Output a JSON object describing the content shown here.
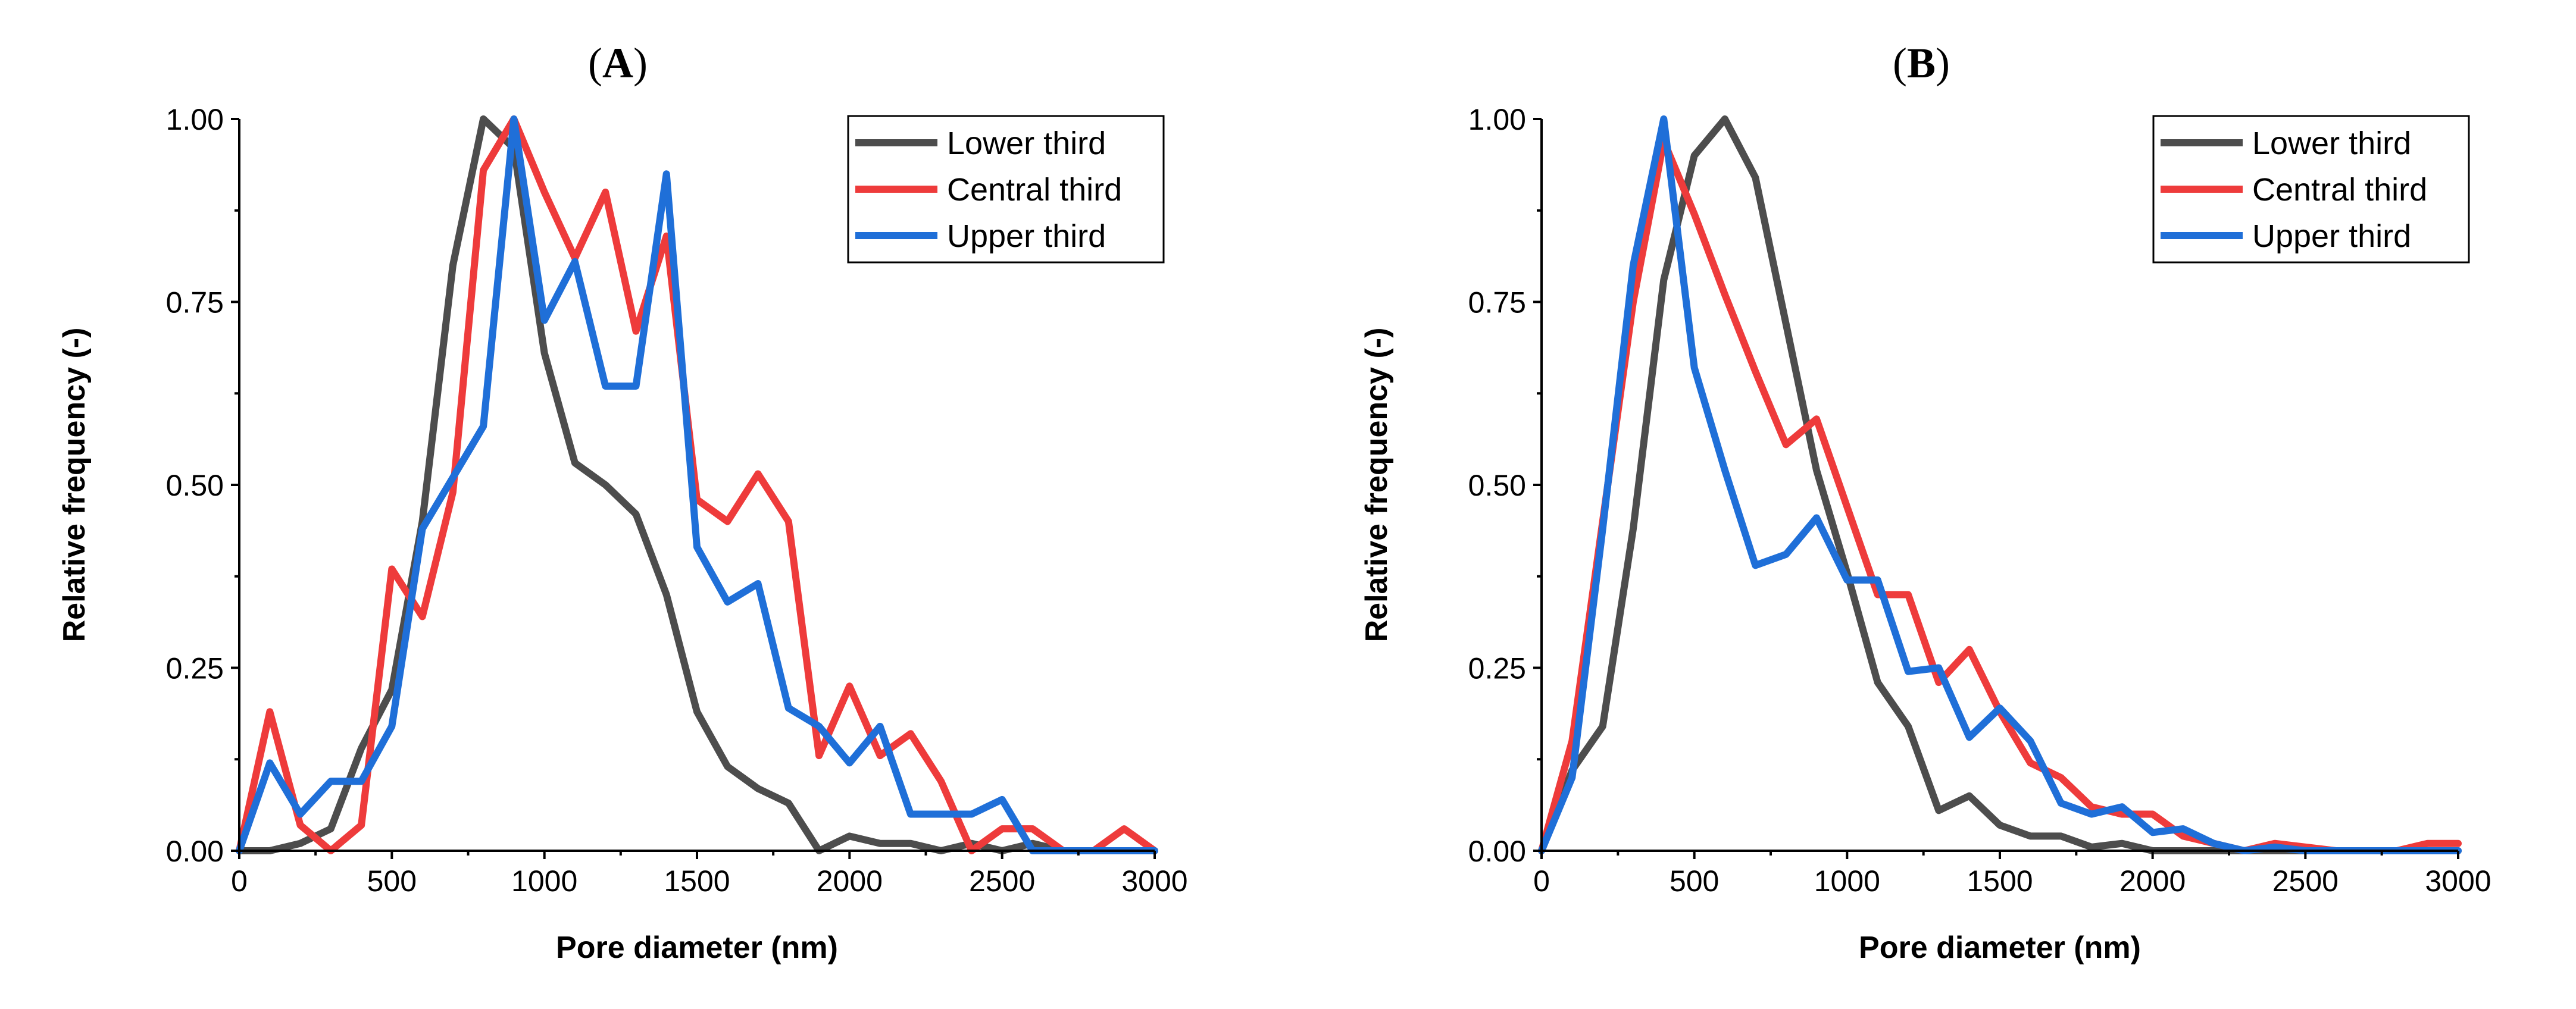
{
  "chart_data": [
    {
      "type": "line",
      "panel_label": {
        "open": "(",
        "letter": "A",
        "close": ")"
      },
      "xlabel": "Pore diameter (nm)",
      "ylabel": "Relative frequency (-)",
      "xlim": [
        0,
        3000
      ],
      "ylim": [
        0,
        1
      ],
      "xticks": [
        0,
        500,
        1000,
        1500,
        2000,
        2500,
        3000
      ],
      "xtick_labels": [
        "0",
        "500",
        "1000",
        "1500",
        "2000",
        "2500",
        "3000"
      ],
      "yticks": [
        0,
        0.25,
        0.5,
        0.75,
        1.0
      ],
      "ytick_labels": [
        "0.00",
        "0.25",
        "0.50",
        "0.75",
        "1.00"
      ],
      "legend_position": "top-right",
      "x": [
        0,
        100,
        200,
        300,
        400,
        500,
        600,
        700,
        800,
        900,
        1000,
        1100,
        1200,
        1300,
        1400,
        1500,
        1600,
        1700,
        1800,
        1900,
        2000,
        2100,
        2200,
        2300,
        2400,
        2500,
        2600,
        2700,
        2800,
        2900,
        3000
      ],
      "series": [
        {
          "name": "Lower third",
          "color": "#4d4d4d",
          "values": [
            0,
            0,
            0.01,
            0.03,
            0.14,
            0.22,
            0.45,
            0.8,
            1.0,
            0.96,
            0.68,
            0.53,
            0.5,
            0.46,
            0.35,
            0.19,
            0.115,
            0.085,
            0.065,
            0,
            0.02,
            0.01,
            0.01,
            0,
            0.01,
            0,
            0.01,
            0,
            0,
            0,
            0
          ]
        },
        {
          "name": "Central third",
          "color": "#ee3b3b",
          "values": [
            0,
            0.19,
            0.035,
            0,
            0.035,
            0.385,
            0.32,
            0.49,
            0.93,
            1.0,
            0.9,
            0.81,
            0.9,
            0.71,
            0.84,
            0.48,
            0.45,
            0.515,
            0.45,
            0.13,
            0.225,
            0.13,
            0.16,
            0.095,
            0,
            0.03,
            0.03,
            0,
            0,
            0.03,
            0
          ]
        },
        {
          "name": "Upper third",
          "color": "#1f6fd8",
          "values": [
            0,
            0.12,
            0.05,
            0.095,
            0.095,
            0.17,
            0.44,
            0.51,
            0.58,
            1.0,
            0.725,
            0.805,
            0.635,
            0.635,
            0.925,
            0.415,
            0.34,
            0.365,
            0.195,
            0.17,
            0.12,
            0.17,
            0.05,
            0.05,
            0.05,
            0.07,
            0,
            0,
            0,
            0,
            0
          ]
        }
      ]
    },
    {
      "type": "line",
      "panel_label": {
        "open": "(",
        "letter": "B",
        "close": ")"
      },
      "xlabel": "Pore diameter (nm)",
      "ylabel": "Relative frequency (-)",
      "xlim": [
        0,
        3000
      ],
      "ylim": [
        0,
        1
      ],
      "xticks": [
        0,
        500,
        1000,
        1500,
        2000,
        2500,
        3000
      ],
      "xtick_labels": [
        "0",
        "500",
        "1000",
        "1500",
        "2000",
        "2500",
        "3000"
      ],
      "yticks": [
        0,
        0.25,
        0.5,
        0.75,
        1.0
      ],
      "ytick_labels": [
        "0.00",
        "0.25",
        "0.50",
        "0.75",
        "1.00"
      ],
      "legend_position": "top-right",
      "x": [
        0,
        100,
        200,
        300,
        400,
        500,
        600,
        700,
        800,
        900,
        1000,
        1100,
        1200,
        1300,
        1400,
        1500,
        1600,
        1700,
        1800,
        1900,
        2000,
        2100,
        2200,
        2300,
        2400,
        2500,
        2600,
        2700,
        2800,
        2900,
        3000
      ],
      "series": [
        {
          "name": "Lower third",
          "color": "#4d4d4d",
          "values": [
            0,
            0.11,
            0.17,
            0.44,
            0.78,
            0.95,
            1.0,
            0.92,
            0.72,
            0.52,
            0.38,
            0.23,
            0.17,
            0.055,
            0.075,
            0.035,
            0.02,
            0.02,
            0.005,
            0.01,
            0,
            0,
            0,
            0,
            0,
            0,
            0,
            0,
            0,
            0,
            0
          ]
        },
        {
          "name": "Central third",
          "color": "#ee3b3b",
          "values": [
            0,
            0.15,
            0.45,
            0.75,
            0.97,
            0.87,
            0.76,
            0.655,
            0.555,
            0.59,
            0.47,
            0.35,
            0.35,
            0.23,
            0.275,
            0.19,
            0.12,
            0.1,
            0.06,
            0.05,
            0.05,
            0.02,
            0.01,
            0,
            0.01,
            0.005,
            0,
            0,
            0,
            0.01,
            0.01
          ]
        },
        {
          "name": "Upper third",
          "color": "#1f6fd8",
          "values": [
            0,
            0.1,
            0.44,
            0.8,
            1.0,
            0.66,
            0.52,
            0.39,
            0.405,
            0.455,
            0.37,
            0.37,
            0.245,
            0.25,
            0.155,
            0.195,
            0.15,
            0.065,
            0.05,
            0.06,
            0.025,
            0.03,
            0.01,
            0,
            0.005,
            0,
            0,
            0,
            0,
            0,
            0
          ]
        }
      ]
    }
  ]
}
